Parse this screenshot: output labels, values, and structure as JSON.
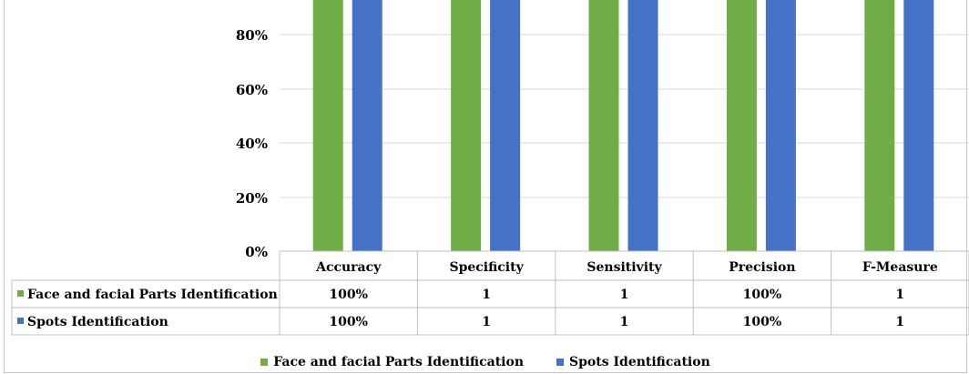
{
  "chart_data": {
    "type": "bar",
    "categories": [
      "Accuracy",
      "Specificity",
      "Sensitivity",
      "Precision",
      "F-Measure"
    ],
    "series": [
      {
        "name": "Face and facial Parts Identification",
        "values": [
          1,
          1,
          1,
          1,
          1
        ],
        "color": "#70ad47",
        "table_values": [
          "100%",
          "1",
          "1",
          "100%",
          "1"
        ]
      },
      {
        "name": "Spots Identification",
        "values": [
          1,
          1,
          1,
          1,
          1
        ],
        "color": "#4472c4",
        "table_values": [
          "100%",
          "1",
          "1",
          "100%",
          "1"
        ]
      }
    ],
    "y_ticks": [
      "0%",
      "20%",
      "40%",
      "60%",
      "80%"
    ],
    "ylim": [
      0,
      1
    ],
    "grid": true,
    "legend": "bottom-center",
    "data_table": true
  }
}
